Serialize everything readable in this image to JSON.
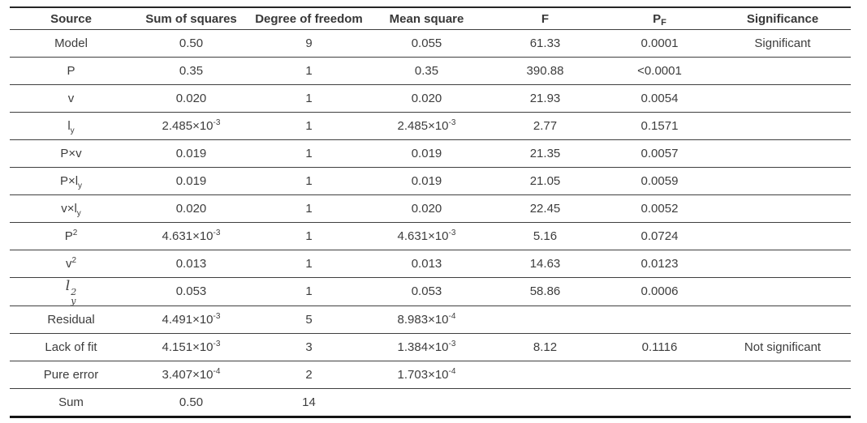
{
  "page": {
    "background": "#ffffff",
    "text_color": "#3d3d3d",
    "rule_color": "#3f3f3f"
  },
  "table": {
    "columns": [
      {
        "id": "source",
        "label": "Source"
      },
      {
        "id": "sum_of_squares",
        "label": "Sum of squares"
      },
      {
        "id": "degree_of_freedom",
        "label": "Degree of freedom"
      },
      {
        "id": "mean_square",
        "label": "Mean square"
      },
      {
        "id": "f",
        "label": "F"
      },
      {
        "id": "pf",
        "label": [
          "P",
          {
            "sub": "F"
          }
        ]
      },
      {
        "id": "significance",
        "label": "Significance"
      }
    ],
    "rows": [
      {
        "source": "Model",
        "cells": [
          "0.50",
          "9",
          "0.055",
          "61.33",
          "0.0001",
          "Significant"
        ]
      },
      {
        "source": "P",
        "cells": [
          "0.35",
          "1",
          "0.35",
          "390.88",
          "<0.0001",
          ""
        ]
      },
      {
        "source": "v",
        "cells": [
          "0.020",
          "1",
          "0.020",
          "21.93",
          "0.0054",
          ""
        ]
      },
      {
        "source": [
          "l",
          {
            "sub": "y"
          }
        ],
        "cells": [
          [
            "2.485×10",
            {
              "sup": "-3"
            }
          ],
          "1",
          [
            "2.485×10",
            {
              "sup": "-3"
            }
          ],
          "2.77",
          "0.1571",
          ""
        ]
      },
      {
        "source": "P×v",
        "cells": [
          "0.019",
          "1",
          "0.019",
          "21.35",
          "0.0057",
          ""
        ]
      },
      {
        "source": [
          "P×l",
          {
            "sub": "y"
          }
        ],
        "cells": [
          "0.019",
          "1",
          "0.019",
          "21.05",
          "0.0059",
          ""
        ]
      },
      {
        "source": [
          "v×l",
          {
            "sub": "y"
          }
        ],
        "cells": [
          "0.020",
          "1",
          "0.020",
          "22.45",
          "0.0052",
          ""
        ]
      },
      {
        "source": [
          "P",
          {
            "sup": "2"
          }
        ],
        "cells": [
          [
            "4.631×10",
            {
              "sup": "-3"
            }
          ],
          "1",
          [
            "4.631×10",
            {
              "sup": "-3"
            }
          ],
          "5.16",
          "0.0724",
          ""
        ]
      },
      {
        "source": [
          "v",
          {
            "sup": "2"
          }
        ],
        "cells": [
          "0.013",
          "1",
          "0.013",
          "14.63",
          "0.0123",
          ""
        ]
      },
      {
        "source": [
          "l",
          {
            "stack": [
              "2",
              "y"
            ]
          }
        ],
        "math": true,
        "cells": [
          "0.053",
          "1",
          "0.053",
          "58.86",
          "0.0006",
          ""
        ]
      },
      {
        "source": "Residual",
        "cells": [
          [
            "4.491×10",
            {
              "sup": "-3"
            }
          ],
          "5",
          [
            "8.983×10",
            {
              "sup": "-4"
            }
          ],
          "",
          "",
          ""
        ]
      },
      {
        "source": "Lack of fit",
        "cells": [
          [
            "4.151×10",
            {
              "sup": "-3"
            }
          ],
          "3",
          [
            "1.384×10",
            {
              "sup": "-3"
            }
          ],
          "8.12",
          "0.1116",
          "Not significant"
        ]
      },
      {
        "source": "Pure error",
        "cells": [
          [
            "3.407×10",
            {
              "sup": "-4"
            }
          ],
          "2",
          [
            "1.703×10",
            {
              "sup": "-4"
            }
          ],
          "",
          "",
          ""
        ]
      },
      {
        "source": "Sum",
        "cells": [
          "0.50",
          "14",
          "",
          "",
          "",
          ""
        ]
      }
    ]
  }
}
